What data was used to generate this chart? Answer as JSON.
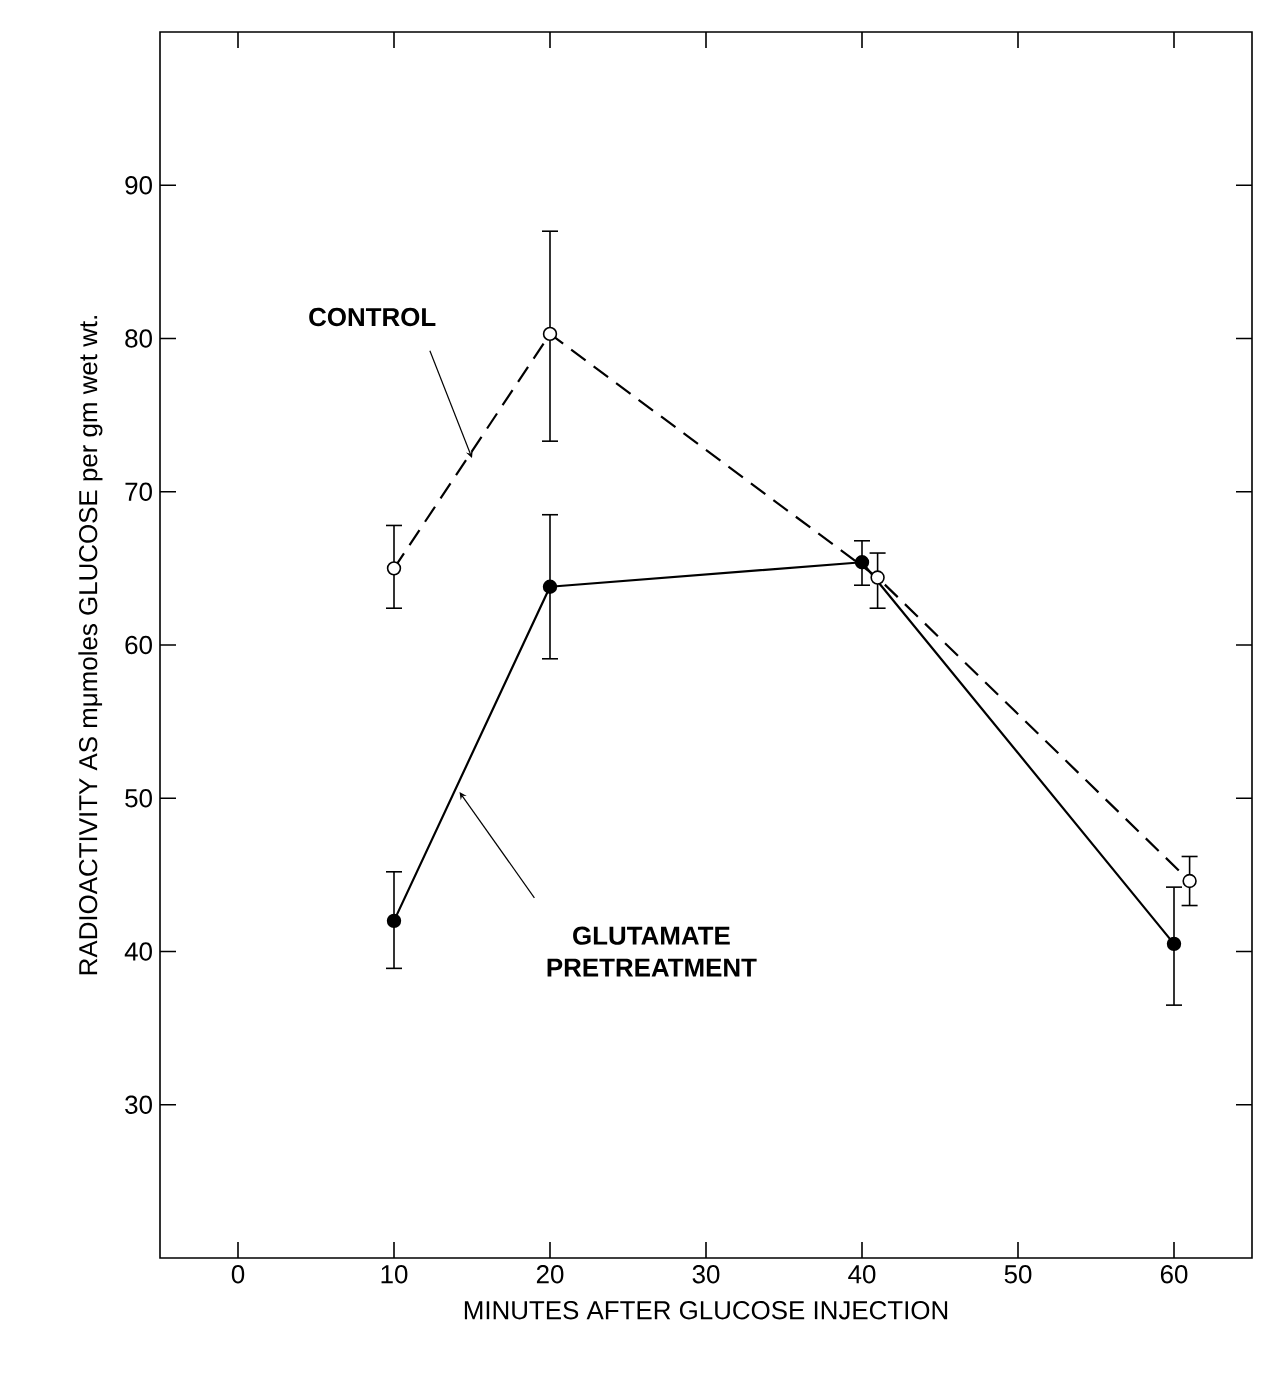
{
  "chart_data": {
    "type": "line",
    "xlabel": "MINUTES AFTER GLUCOSE INJECTION",
    "ylabel": "RADIOACTIVITY AS mμmoles GLUCOSE per gm wet wt.",
    "xlim": [
      -5,
      65
    ],
    "xticks": [
      0,
      10,
      20,
      30,
      40,
      50,
      60
    ],
    "ylim": [
      20,
      100
    ],
    "yticks": [
      30,
      40,
      50,
      60,
      70,
      80,
      90
    ],
    "grid": false,
    "marker": "circle",
    "annotations": [
      {
        "text": "CONTROL",
        "x": 15.0,
        "y": 72.2
      },
      {
        "text": "GLUTAMATE PRETREATMENT",
        "x": 14.2,
        "y": 50.4
      }
    ],
    "series": [
      {
        "color": "#000000",
        "line_style": "dashed",
        "x": [
          10,
          20,
          41,
          61
        ],
        "values": [
          65.0,
          80.3,
          64.4,
          44.6
        ],
        "errors": [
          [
            62.4,
            67.8
          ],
          [
            73.3,
            87.0
          ],
          [
            62.4,
            66.0
          ],
          [
            43.0,
            46.2
          ]
        ]
      },
      {
        "color": "#000000",
        "line_style": "solid",
        "x": [
          10,
          20,
          40,
          60
        ],
        "values": [
          42.0,
          63.8,
          65.4,
          40.5
        ],
        "errors": [
          [
            38.9,
            45.2
          ],
          [
            59.1,
            68.5
          ],
          [
            63.9,
            66.8
          ],
          [
            36.5,
            44.2
          ]
        ]
      }
    ]
  }
}
